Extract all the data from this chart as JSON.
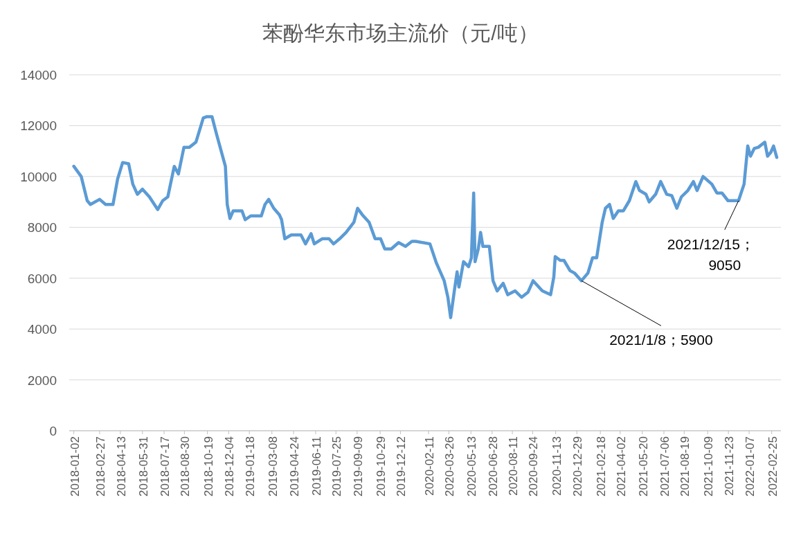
{
  "chart_data": {
    "type": "line",
    "title": "苯酚华东市场主流价（元/吨）",
    "x": [
      "2018-01-02",
      "2018-01-18",
      "2018-01-31",
      "2018-02-07",
      "2018-02-27",
      "2018-03-12",
      "2018-03-28",
      "2018-04-07",
      "2018-04-18",
      "2018-05-01",
      "2018-05-10",
      "2018-05-20",
      "2018-05-31",
      "2018-06-15",
      "2018-07-03",
      "2018-07-14",
      "2018-07-25",
      "2018-08-08",
      "2018-08-17",
      "2018-08-29",
      "2018-09-10",
      "2018-09-24",
      "2018-10-10",
      "2018-10-17",
      "2018-10-29",
      "2018-11-08",
      "2018-11-27",
      "2018-12-01",
      "2018-12-07",
      "2018-12-14",
      "2019-01-02",
      "2019-01-09",
      "2019-01-21",
      "2019-02-13",
      "2019-02-21",
      "2019-03-01",
      "2019-03-12",
      "2019-03-24",
      "2019-03-29",
      "2019-04-05",
      "2019-04-19",
      "2019-05-10",
      "2019-05-20",
      "2019-06-01",
      "2019-06-08",
      "2019-06-25",
      "2019-07-10",
      "2019-07-20",
      "2019-08-02",
      "2019-08-16",
      "2019-09-02",
      "2019-09-10",
      "2019-09-20",
      "2019-10-05",
      "2019-10-18",
      "2019-10-30",
      "2019-11-08",
      "2019-11-22",
      "2019-12-08",
      "2019-12-23",
      "2020-01-06",
      "2020-01-14",
      "2020-02-14",
      "2020-02-28",
      "2020-03-16",
      "2020-03-24",
      "2020-03-30",
      "2020-04-07",
      "2020-04-13",
      "2020-04-17",
      "2020-04-27",
      "2020-05-08",
      "2020-05-14",
      "2020-05-19",
      "2020-05-22",
      "2020-05-29",
      "2020-06-03",
      "2020-06-08",
      "2020-06-22",
      "2020-06-30",
      "2020-07-09",
      "2020-07-22",
      "2020-08-01",
      "2020-08-17",
      "2020-08-31",
      "2020-09-14",
      "2020-09-25",
      "2020-10-15",
      "2020-11-02",
      "2020-11-09",
      "2020-11-12",
      "2020-11-23",
      "2020-12-01",
      "2020-12-14",
      "2020-12-24",
      "2021-01-08",
      "2021-01-22",
      "2021-02-01",
      "2021-02-10",
      "2021-02-22",
      "2021-03-01",
      "2021-03-10",
      "2021-03-18",
      "2021-03-29",
      "2021-04-09",
      "2021-04-22",
      "2021-05-06",
      "2021-05-14",
      "2021-05-28",
      "2021-06-04",
      "2021-06-18",
      "2021-06-29",
      "2021-07-12",
      "2021-07-23",
      "2021-08-03",
      "2021-08-13",
      "2021-08-27",
      "2021-09-08",
      "2021-09-16",
      "2021-09-29",
      "2021-10-18",
      "2021-10-29",
      "2021-11-09",
      "2021-11-22",
      "2021-12-15",
      "2021-12-27",
      "2022-01-04",
      "2022-01-10",
      "2022-01-18",
      "2022-01-27",
      "2022-02-10",
      "2022-02-16",
      "2022-02-23",
      "2022-03-01",
      "2022-03-08"
    ],
    "series": [
      {
        "color": "#5b9bd5",
        "values": [
          10400,
          10000,
          9050,
          8900,
          9100,
          8900,
          8900,
          9900,
          10550,
          10500,
          9700,
          9300,
          9500,
          9200,
          8700,
          9050,
          9200,
          10400,
          10100,
          11150,
          11150,
          11350,
          12300,
          12350,
          12350,
          11650,
          10400,
          8900,
          8350,
          8650,
          8650,
          8300,
          8450,
          8450,
          8900,
          9100,
          8750,
          8500,
          8300,
          7550,
          7700,
          7700,
          7350,
          7750,
          7350,
          7550,
          7550,
          7350,
          7550,
          7800,
          8200,
          8750,
          8500,
          8200,
          7550,
          7550,
          7150,
          7150,
          7400,
          7250,
          7450,
          7450,
          7350,
          6600,
          5900,
          5250,
          4450,
          5500,
          6250,
          5650,
          6650,
          6450,
          6800,
          9350,
          6650,
          7150,
          7800,
          7250,
          7250,
          5900,
          5500,
          5800,
          5350,
          5500,
          5250,
          5450,
          5900,
          5500,
          5350,
          6050,
          6850,
          6700,
          6700,
          6300,
          6200,
          5900,
          6200,
          6800,
          6800,
          8200,
          8750,
          8900,
          8350,
          8650,
          8650,
          9050,
          9800,
          9450,
          9300,
          9000,
          9300,
          9800,
          9300,
          9250,
          8750,
          9200,
          9450,
          9800,
          9450,
          10000,
          9700,
          9350,
          9350,
          9050,
          9050,
          9700,
          11200,
          10800,
          11100,
          11150,
          11350,
          10800,
          10950,
          11200,
          10750
        ]
      }
    ],
    "ylim": [
      0,
      14000
    ],
    "yticks": [
      0,
      2000,
      4000,
      6000,
      8000,
      10000,
      12000,
      14000
    ],
    "xlim": [
      "2017-12-23",
      "2022-03-17"
    ],
    "xticks": [
      "2018-01-02",
      "2018-02-27",
      "2018-04-13",
      "2018-05-31",
      "2018-07-17",
      "2018-08-30",
      "2018-10-19",
      "2018-12-04",
      "2019-01-18",
      "2019-03-08",
      "2019-04-24",
      "2019-06-11",
      "2019-07-25",
      "2019-09-09",
      "2019-10-29",
      "2019-12-12",
      "2020-02-11",
      "2020-03-26",
      "2020-05-13",
      "2020-06-28",
      "2020-08-11",
      "2020-09-24",
      "2020-11-13",
      "2020-12-29",
      "2021-02-18",
      "2021-04-02",
      "2021-05-20",
      "2021-07-06",
      "2021-08-19",
      "2021-10-09",
      "2021-11-23",
      "2022-01-07",
      "2022-02-25"
    ],
    "grid": "y",
    "marker": "none",
    "line_style": "solid",
    "annotations": [
      {
        "text": "2021/1/8；5900",
        "x": "2021-01-08",
        "y": 5900
      },
      {
        "text": "2021/12/15；\n9050",
        "x": "2021-12-15",
        "y": 9050
      }
    ]
  }
}
